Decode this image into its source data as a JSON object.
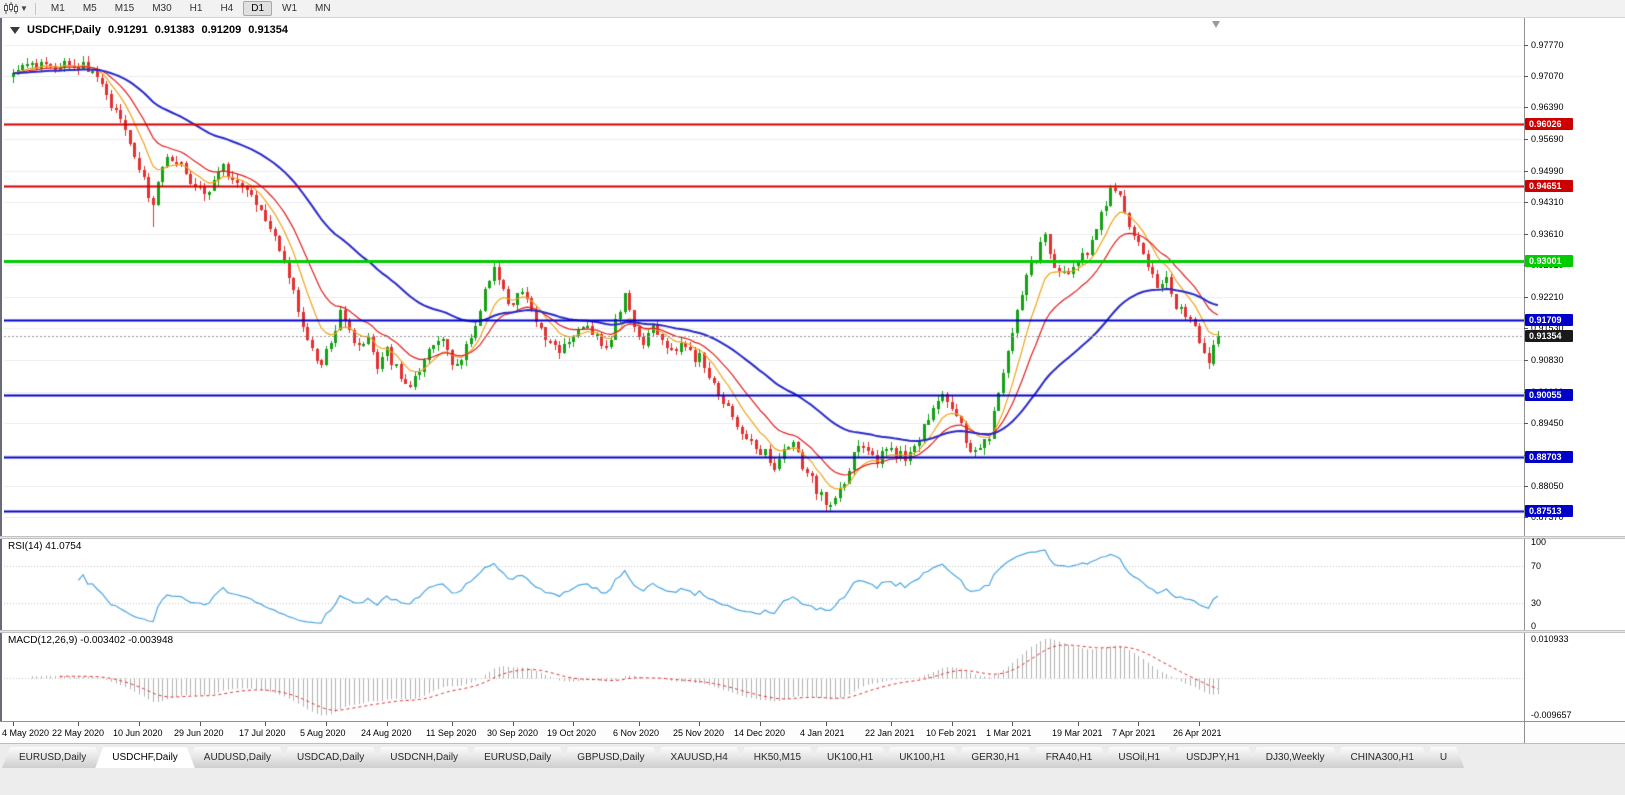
{
  "toolbar": {
    "timeframes": [
      "M1",
      "M5",
      "M15",
      "M30",
      "H1",
      "H4",
      "D1",
      "W1",
      "MN"
    ],
    "active": "D1"
  },
  "icons": {
    "chart_type": "candlestick-chart-icon",
    "dropdown": "chevron-down-icon",
    "one_click": "one-click-trading-arrow-icon",
    "shift": "chart-shift-marker"
  },
  "chart_header": {
    "symbol": "USDCHF,Daily",
    "open": "0.91291",
    "high": "0.91383",
    "low": "0.91209",
    "close": "0.91354"
  },
  "price_scale": {
    "ticks": [
      "0.97770",
      "0.97070",
      "0.96390",
      "0.95690",
      "0.94990",
      "0.94310",
      "0.93610",
      "0.92910",
      "0.92210",
      "0.91530",
      "0.90830",
      "0.90130",
      "0.89450",
      "0.88750",
      "0.88050",
      "0.87370"
    ],
    "markers": [
      {
        "label": "0.96026",
        "price": 0.96026,
        "bg": "#cc0000",
        "line": "solid",
        "width": 2
      },
      {
        "label": "0.94651",
        "price": 0.94651,
        "bg": "#cc0000",
        "line": "solid",
        "width": 2
      },
      {
        "label": "0.93001",
        "price": 0.93001,
        "bg": "#00cc00",
        "line": "solid",
        "width": 3
      },
      {
        "label": "0.91709",
        "price": 0.91709,
        "bg": "#0000c8",
        "line": "solid",
        "width": 2
      },
      {
        "label": "0.91354",
        "price": 0.91354,
        "bg": "#1a1a1a",
        "line": "current",
        "width": 1
      },
      {
        "label": "0.90055",
        "price": 0.90055,
        "bg": "#0000c8",
        "line": "solid",
        "width": 2
      },
      {
        "label": "0.88703",
        "price": 0.88703,
        "bg": "#0000c8",
        "line": "solid",
        "width": 2
      },
      {
        "label": "0.87513",
        "price": 0.87513,
        "bg": "#0000c8",
        "line": "solid",
        "width": 2
      }
    ]
  },
  "indicators": {
    "rsi": {
      "name": "RSI",
      "period": 14,
      "value": "41.0754",
      "label": "RSI(14) 41.0754",
      "scale": [
        "100",
        "70",
        "30",
        "0"
      ],
      "levels": [
        70,
        30
      ],
      "color": "#4da6e0"
    },
    "macd": {
      "name": "MACD",
      "params": "12,26,9",
      "macd_value": "-0.003402",
      "signal_value": "-0.003948",
      "label": "MACD(12,26,9) -0.003402 -0.003948",
      "scale_top": "0.010933",
      "scale_bottom": "-0.009657",
      "histogram_color": "#b0b0b0",
      "signal_color": "#e03030"
    }
  },
  "time_axis": {
    "labels": [
      {
        "i": 0,
        "text": "4 May 2020"
      },
      {
        "i": 14,
        "text": "22 May 2020"
      },
      {
        "i": 27,
        "text": "10 Jun 2020"
      },
      {
        "i": 40,
        "text": "29 Jun 2020"
      },
      {
        "i": 54,
        "text": "17 Jul 2020"
      },
      {
        "i": 67,
        "text": "5 Aug 2020"
      },
      {
        "i": 80,
        "text": "24 Aug 2020"
      },
      {
        "i": 94,
        "text": "11 Sep 2020"
      },
      {
        "i": 107,
        "text": "30 Sep 2020"
      },
      {
        "i": 120,
        "text": "19 Oct 2020"
      },
      {
        "i": 134,
        "text": "6 Nov 2020"
      },
      {
        "i": 147,
        "text": "25 Nov 2020"
      },
      {
        "i": 160,
        "text": "14 Dec 2020"
      },
      {
        "i": 174,
        "text": "4 Jan 2021"
      },
      {
        "i": 188,
        "text": "22 Jan 2021"
      },
      {
        "i": 201,
        "text": "10 Feb 2021"
      },
      {
        "i": 214,
        "text": "1 Mar 2021"
      },
      {
        "i": 228,
        "text": "19 Mar 2021"
      },
      {
        "i": 241,
        "text": "7 Apr 2021"
      },
      {
        "i": 254,
        "text": "26 Apr 2021"
      }
    ]
  },
  "tab_bar": {
    "tabs": [
      {
        "label": "EURUSD,Daily",
        "active": false
      },
      {
        "label": "USDCHF,Daily",
        "active": true
      },
      {
        "label": "AUDUSD,Daily",
        "active": false
      },
      {
        "label": "USDCAD,Daily",
        "active": false
      },
      {
        "label": "USDCNH,Daily",
        "active": false
      },
      {
        "label": "EURUSD,Daily",
        "active": false
      },
      {
        "label": "GBPUSD,Daily",
        "active": false
      },
      {
        "label": "XAUUSD,H4",
        "active": false
      },
      {
        "label": "HK50,M15",
        "active": false
      },
      {
        "label": "UK100,H1",
        "active": false
      },
      {
        "label": "UK100,H1",
        "active": false
      },
      {
        "label": "GER30,H1",
        "active": false
      },
      {
        "label": "FRA40,H1",
        "active": false
      },
      {
        "label": "USOil,H1",
        "active": false
      },
      {
        "label": "USDJPY,H1",
        "active": false
      },
      {
        "label": "DJ30,Weekly",
        "active": false
      },
      {
        "label": "CHINA300,H1",
        "active": false
      },
      {
        "label": "U",
        "active": false
      }
    ]
  },
  "chart_data": {
    "type": "candlestick",
    "symbol": "USDCHF",
    "timeframe": "Daily",
    "candle_count": 259,
    "last_close": 0.91354,
    "up_color": "#14a114",
    "down_color": "#e33030",
    "moving_averages": [
      {
        "name": "fast-ma",
        "period": 8,
        "color": "#eea41e",
        "width": 1.2
      },
      {
        "name": "medium-ma",
        "period": 16,
        "color": "#e02020",
        "width": 1.2
      },
      {
        "name": "slow-ma",
        "period": 45,
        "color": "#2929c8",
        "width": 2
      }
    ],
    "price_anchors": [
      [
        0,
        0.9705
      ],
      [
        4,
        0.9738
      ],
      [
        8,
        0.972
      ],
      [
        12,
        0.9742
      ],
      [
        16,
        0.9725
      ],
      [
        19,
        0.968
      ],
      [
        22,
        0.9635
      ],
      [
        25,
        0.956
      ],
      [
        28,
        0.948
      ],
      [
        30,
        0.9425
      ],
      [
        33,
        0.954
      ],
      [
        36,
        0.9505
      ],
      [
        39,
        0.9465
      ],
      [
        42,
        0.945
      ],
      [
        45,
        0.9505
      ],
      [
        48,
        0.947
      ],
      [
        51,
        0.944
      ],
      [
        54,
        0.9395
      ],
      [
        56,
        0.935
      ],
      [
        58,
        0.929
      ],
      [
        60,
        0.923
      ],
      [
        62,
        0.9165
      ],
      [
        64,
        0.91
      ],
      [
        66,
        0.9075
      ],
      [
        68,
        0.913
      ],
      [
        70,
        0.9185
      ],
      [
        72,
        0.915
      ],
      [
        74,
        0.9105
      ],
      [
        76,
        0.914
      ],
      [
        78,
        0.9075
      ],
      [
        80,
        0.91
      ],
      [
        82,
        0.9065
      ],
      [
        85,
        0.9025
      ],
      [
        87,
        0.906
      ],
      [
        89,
        0.91
      ],
      [
        91,
        0.9135
      ],
      [
        93,
        0.91
      ],
      [
        95,
        0.907
      ],
      [
        97,
        0.9115
      ],
      [
        99,
        0.916
      ],
      [
        101,
        0.9235
      ],
      [
        103,
        0.9295
      ],
      [
        105,
        0.923
      ],
      [
        107,
        0.9205
      ],
      [
        109,
        0.923
      ],
      [
        111,
        0.9185
      ],
      [
        113,
        0.9155
      ],
      [
        115,
        0.912
      ],
      [
        117,
        0.9095
      ],
      [
        119,
        0.913
      ],
      [
        121,
        0.915
      ],
      [
        123,
        0.916
      ],
      [
        125,
        0.913
      ],
      [
        127,
        0.9105
      ],
      [
        129,
        0.9165
      ],
      [
        131,
        0.9225
      ],
      [
        133,
        0.916
      ],
      [
        135,
        0.912
      ],
      [
        137,
        0.915
      ],
      [
        139,
        0.9125
      ],
      [
        141,
        0.91
      ],
      [
        143,
        0.9115
      ],
      [
        145,
        0.9095
      ],
      [
        147,
        0.9085
      ],
      [
        149,
        0.905
      ],
      [
        151,
        0.9015
      ],
      [
        153,
        0.8985
      ],
      [
        155,
        0.8945
      ],
      [
        157,
        0.892
      ],
      [
        159,
        0.8895
      ],
      [
        161,
        0.888
      ],
      [
        163,
        0.8855
      ],
      [
        165,
        0.8885
      ],
      [
        167,
        0.8895
      ],
      [
        169,
        0.885
      ],
      [
        171,
        0.8815
      ],
      [
        173,
        0.8785
      ],
      [
        175,
        0.8765
      ],
      [
        177,
        0.879
      ],
      [
        179,
        0.885
      ],
      [
        181,
        0.889
      ],
      [
        183,
        0.8875
      ],
      [
        185,
        0.886
      ],
      [
        187,
        0.8885
      ],
      [
        189,
        0.8875
      ],
      [
        191,
        0.887
      ],
      [
        193,
        0.89
      ],
      [
        195,
        0.8935
      ],
      [
        197,
        0.8965
      ],
      [
        199,
        0.9
      ],
      [
        201,
        0.8965
      ],
      [
        203,
        0.8935
      ],
      [
        205,
        0.889
      ],
      [
        207,
        0.888
      ],
      [
        209,
        0.892
      ],
      [
        211,
        0.9
      ],
      [
        213,
        0.91
      ],
      [
        215,
        0.92
      ],
      [
        217,
        0.927
      ],
      [
        219,
        0.931
      ],
      [
        221,
        0.9355
      ],
      [
        223,
        0.929
      ],
      [
        225,
        0.927
      ],
      [
        227,
        0.9295
      ],
      [
        229,
        0.931
      ],
      [
        231,
        0.934
      ],
      [
        233,
        0.94
      ],
      [
        235,
        0.945
      ],
      [
        236,
        0.9462
      ],
      [
        238,
        0.941
      ],
      [
        240,
        0.9365
      ],
      [
        241,
        0.934
      ],
      [
        243,
        0.928
      ],
      [
        245,
        0.9245
      ],
      [
        247,
        0.9255
      ],
      [
        249,
        0.9205
      ],
      [
        251,
        0.9175
      ],
      [
        253,
        0.915
      ],
      [
        254,
        0.9132
      ],
      [
        255,
        0.911
      ],
      [
        256,
        0.9085
      ],
      [
        257,
        0.9105
      ],
      [
        258,
        0.9135
      ]
    ],
    "wick_extremes": [
      {
        "i": 30,
        "type": "low",
        "price": 0.9376
      },
      {
        "i": 103,
        "type": "high",
        "price": 0.93
      },
      {
        "i": 175,
        "type": "low",
        "price": 0.8757
      },
      {
        "i": 236,
        "type": "high",
        "price": 0.9472
      },
      {
        "i": 256,
        "type": "low",
        "price": 0.9063
      }
    ]
  }
}
